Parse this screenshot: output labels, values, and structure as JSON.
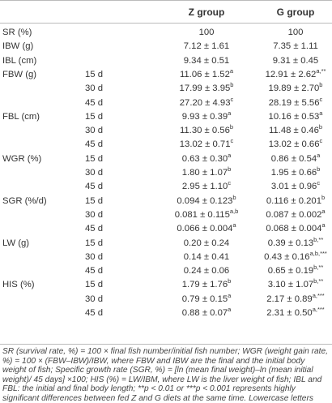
{
  "table": {
    "columns": [
      "Z group",
      "G group"
    ],
    "rows": [
      {
        "label": "SR (%)",
        "z": "100",
        "g": "100"
      },
      {
        "label": "IBW (g)",
        "z": "7.12 ± 1.61",
        "g": "7.35 ± 1.11"
      },
      {
        "label": "IBL (cm)",
        "z": "9.34 ± 0.51",
        "g": "9.31 ± 0.45"
      },
      {
        "label": "FBW (g)",
        "day": "15 d",
        "z": "11.06 ± 1.52",
        "z_sup": "a",
        "g": "12.91 ± 2.62",
        "g_sup": "a,**"
      },
      {
        "day": "30 d",
        "z": "17.99 ± 3.95",
        "z_sup": "b",
        "g": "19.89 ± 2.70",
        "g_sup": "b"
      },
      {
        "day": "45 d",
        "z": "27.20 ± 4.93",
        "z_sup": "c",
        "g": "28.19 ± 5.56",
        "g_sup": "c"
      },
      {
        "label": "FBL (cm)",
        "day": "15 d",
        "z": "9.93 ± 0.39",
        "z_sup": "a",
        "g": "10.16 ± 0.53",
        "g_sup": "a"
      },
      {
        "day": "30 d",
        "z": "11.30 ± 0.56",
        "z_sup": "b",
        "g": "11.48 ± 0.46",
        "g_sup": "b"
      },
      {
        "day": "45 d",
        "z": "13.02 ± 0.71",
        "z_sup": "c",
        "g": "13.02 ± 0.66",
        "g_sup": "c"
      },
      {
        "label": "WGR (%)",
        "day": "15 d",
        "z": "0.63 ± 0.30",
        "z_sup": "a",
        "g": "0.86 ± 0.54",
        "g_sup": "a"
      },
      {
        "day": "30 d",
        "z": "1.80 ± 1.07",
        "z_sup": "b",
        "g": "1.95 ± 0.66",
        "g_sup": "b"
      },
      {
        "day": "45 d",
        "z": "2.95 ± 1.10",
        "z_sup": "c",
        "g": "3.01 ± 0.96",
        "g_sup": "c"
      },
      {
        "label": "SGR (%/d)",
        "day": "15 d",
        "z": "0.094 ± 0.123",
        "z_sup": "b",
        "g": "0.116 ± 0.201",
        "g_sup": "b"
      },
      {
        "day": "30 d",
        "z": "0.081 ± 0.115",
        "z_sup": "a,b",
        "g": "0.087 ± 0.002",
        "g_sup": "a"
      },
      {
        "day": "45 d",
        "z": "0.066 ± 0.004",
        "z_sup": "a",
        "g": "0.068 ± 0.004",
        "g_sup": "a"
      },
      {
        "label": "LW (g)",
        "day": "15 d",
        "z": "0.20 ± 0.24",
        "g": "0.39 ± 0.13",
        "g_sup": "b,**"
      },
      {
        "day": "30 d",
        "z": "0.14 ± 0.41",
        "g": "0.43 ± 0.16",
        "g_sup": "a,b,***"
      },
      {
        "day": "45 d",
        "z": "0.24 ± 0.06",
        "g": "0.65 ± 0.19",
        "g_sup": "b,**"
      },
      {
        "label": "HIS (%)",
        "day": "15 d",
        "z": "1.79 ± 1.76",
        "z_sup": "b",
        "g": "3.10 ± 1.07",
        "g_sup": "b,**"
      },
      {
        "day": "30 d",
        "z": "0.79 ± 0.15",
        "z_sup": "a",
        "g": "2.17 ± 0.89",
        "g_sup": "a,***"
      },
      {
        "day": "45 d",
        "z": "0.88 ± 0.07",
        "z_sup": "a",
        "g": "2.31 ± 0.50",
        "g_sup": "a,***"
      }
    ],
    "footnote": "SR (survival rate, %) = 100 × final fish number/initial fish number; WGR (weight gain rate, %) = 100 × (FBW–IBW)/IBW, where FBW and IBW are the final and the initial body weight of fish; Specific growth rate (SGR, %) = [ln (mean final weight)–ln (mean initial weight)/ 45 days] ×100; HIS (%) = LW/IBM, where LW is the liver weight of fish; IBL and FBL: the initial and final body length; **p < 0.01 or ***p < 0.001 represents highly significant differences between fed Z and G diets at the same time. Lowercase letters represent differences between different times fed the same diet. The “a, b, c” represents differences between different times fed the same diet."
  }
}
